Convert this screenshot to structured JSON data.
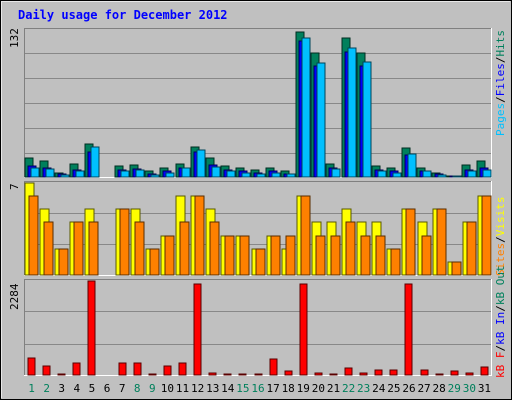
{
  "chart_data": [
    {
      "type": "bar",
      "panel": "top",
      "title": "Daily usage for December 2012",
      "y_tick_label": "132",
      "ylim": [
        0,
        132
      ],
      "grid": true,
      "categories": [
        "1",
        "2",
        "3",
        "4",
        "5",
        "6",
        "7",
        "8",
        "9",
        "10",
        "11",
        "12",
        "13",
        "14",
        "15",
        "16",
        "17",
        "18",
        "19",
        "20",
        "21",
        "22",
        "23",
        "24",
        "25",
        "26",
        "27",
        "28",
        "29",
        "30",
        "31"
      ],
      "weekend_days": [
        "1",
        "2",
        "8",
        "9",
        "15",
        "16",
        "22",
        "23",
        "29",
        "30"
      ],
      "series": [
        {
          "name": "Hits",
          "color": "#00805c",
          "values": [
            17,
            14,
            4,
            12,
            30,
            0,
            10,
            11,
            5,
            8,
            12,
            27,
            17,
            10,
            8,
            6,
            8,
            5,
            130,
            111,
            12,
            125,
            111,
            10,
            8,
            26,
            8,
            4,
            1,
            11,
            14
          ]
        },
        {
          "name": "Files",
          "color": "#0000ff",
          "values": [
            10,
            8,
            3,
            6,
            22,
            0,
            6,
            7,
            3,
            5,
            8,
            22,
            11,
            6,
            5,
            4,
            5,
            3,
            122,
            100,
            8,
            112,
            100,
            6,
            5,
            20,
            5,
            3,
            1,
            6,
            8
          ]
        },
        {
          "name": "Pages",
          "color": "#00c0ff",
          "values": [
            8,
            7,
            2,
            5,
            27,
            0,
            5,
            6,
            2,
            4,
            8,
            24,
            9,
            5,
            4,
            3,
            4,
            3,
            125,
            102,
            7,
            116,
            103,
            5,
            4,
            21,
            5,
            2,
            1,
            5,
            6
          ]
        }
      ],
      "legend": [
        "Pages",
        "/",
        "Files",
        "/",
        "Hits"
      ]
    },
    {
      "type": "bar",
      "panel": "middle",
      "y_tick_label": "7",
      "ylim": [
        0,
        7
      ],
      "grid": true,
      "categories": [
        "1",
        "2",
        "3",
        "4",
        "5",
        "6",
        "7",
        "8",
        "9",
        "10",
        "11",
        "12",
        "13",
        "14",
        "15",
        "16",
        "17",
        "18",
        "19",
        "20",
        "21",
        "22",
        "23",
        "24",
        "25",
        "26",
        "27",
        "28",
        "29",
        "30",
        "31"
      ],
      "series": [
        {
          "name": "Visits",
          "color": "#ffff00",
          "values": [
            7,
            5,
            2,
            4,
            5,
            0,
            5,
            5,
            2,
            3,
            6,
            6,
            5,
            3,
            3,
            2,
            3,
            2,
            6,
            4,
            4,
            5,
            4,
            4,
            2,
            5,
            4,
            5,
            1,
            4,
            6
          ]
        },
        {
          "name": "Sites",
          "color": "#ff8000",
          "values": [
            6,
            4,
            2,
            4,
            4,
            0,
            5,
            4,
            2,
            3,
            4,
            6,
            4,
            3,
            3,
            2,
            3,
            3,
            6,
            3,
            3,
            4,
            3,
            3,
            2,
            5,
            3,
            5,
            1,
            4,
            6
          ]
        }
      ],
      "legend": [
        "Sites",
        "/",
        "Visits"
      ]
    },
    {
      "type": "bar",
      "panel": "bottom",
      "y_tick_label": "2284",
      "ylim": [
        0,
        2284
      ],
      "grid": true,
      "categories": [
        "1",
        "2",
        "3",
        "4",
        "5",
        "6",
        "7",
        "8",
        "9",
        "10",
        "11",
        "12",
        "13",
        "14",
        "15",
        "16",
        "17",
        "18",
        "19",
        "20",
        "21",
        "22",
        "23",
        "24",
        "25",
        "26",
        "27",
        "28",
        "29",
        "30",
        "31"
      ],
      "series": [
        {
          "name": "kB F",
          "color": "#ff0000",
          "values": [
            420,
            230,
            30,
            280,
            2284,
            0,
            280,
            300,
            30,
            230,
            290,
            2200,
            40,
            30,
            30,
            30,
            400,
            100,
            2200,
            40,
            30,
            180,
            40,
            110,
            110,
            2200,
            130,
            30,
            100,
            50,
            200
          ]
        }
      ],
      "legend": [
        "kB F",
        "/",
        "kB In",
        "/",
        "kB Out"
      ]
    }
  ],
  "colors": {
    "frame_bg": "#c0c0c0",
    "title": "#0000ff",
    "weekday_label": "#000000",
    "weekend_label": "#00805c",
    "legend_pages": "#00c0ff",
    "legend_files": "#0000ff",
    "legend_hits": "#00805c",
    "legend_sites": "#ff8000",
    "legend_visits": "#ffff00",
    "legend_kbf": "#ff0000",
    "legend_kbin": "#0000ff",
    "legend_kbout": "#00805c"
  }
}
